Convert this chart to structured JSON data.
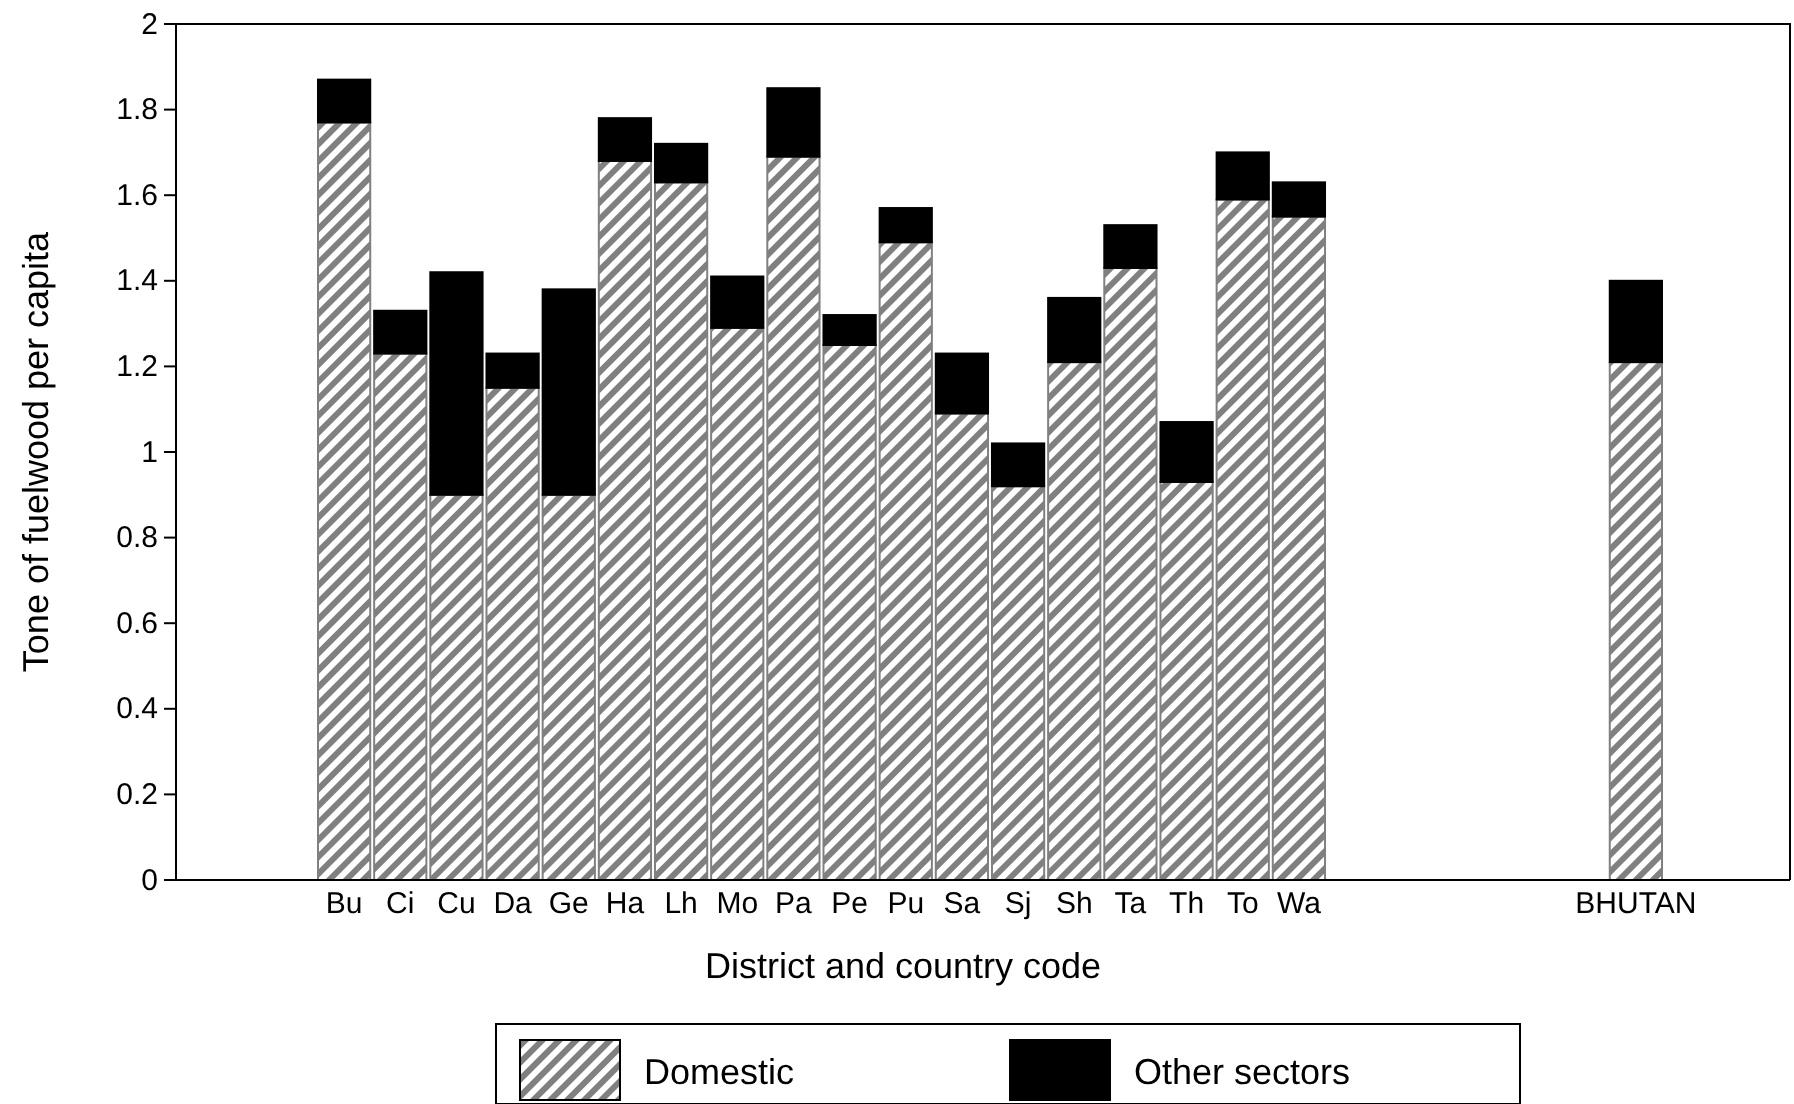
{
  "chart_data": {
    "type": "bar",
    "stacked": true,
    "xlabel": "District and country code",
    "ylabel": "Tone of fuelwood per capita",
    "categories": [
      "Bu",
      "Ci",
      "Cu",
      "Da",
      "Ge",
      "Ha",
      "Lh",
      "Mo",
      "Pa",
      "Pe",
      "Pu",
      "Sa",
      "Sj",
      "Sh",
      "Ta",
      "Th",
      "To",
      "Wa",
      null,
      null,
      null,
      null,
      null,
      "BHUTAN"
    ],
    "series": [
      {
        "name": "Domestic",
        "color": "#808080",
        "values": [
          1.77,
          1.23,
          0.9,
          1.15,
          0.9,
          1.68,
          1.63,
          1.29,
          1.69,
          1.25,
          1.49,
          1.09,
          0.92,
          1.21,
          1.43,
          0.93,
          1.59,
          1.55,
          null,
          null,
          null,
          null,
          null,
          1.21
        ]
      },
      {
        "name": "Other sectors",
        "color": "#000000",
        "values": [
          0.1,
          0.1,
          0.52,
          0.08,
          0.48,
          0.1,
          0.09,
          0.12,
          0.16,
          0.07,
          0.08,
          0.14,
          0.1,
          0.15,
          0.1,
          0.14,
          0.11,
          0.08,
          null,
          null,
          null,
          null,
          null,
          0.19
        ]
      }
    ],
    "ylim": [
      0,
      2
    ],
    "yticks": [
      0,
      0.2,
      0.4,
      0.6,
      0.8,
      1,
      1.2,
      1.4,
      1.6,
      1.8,
      2
    ],
    "grid": false,
    "legend": "bottom"
  }
}
